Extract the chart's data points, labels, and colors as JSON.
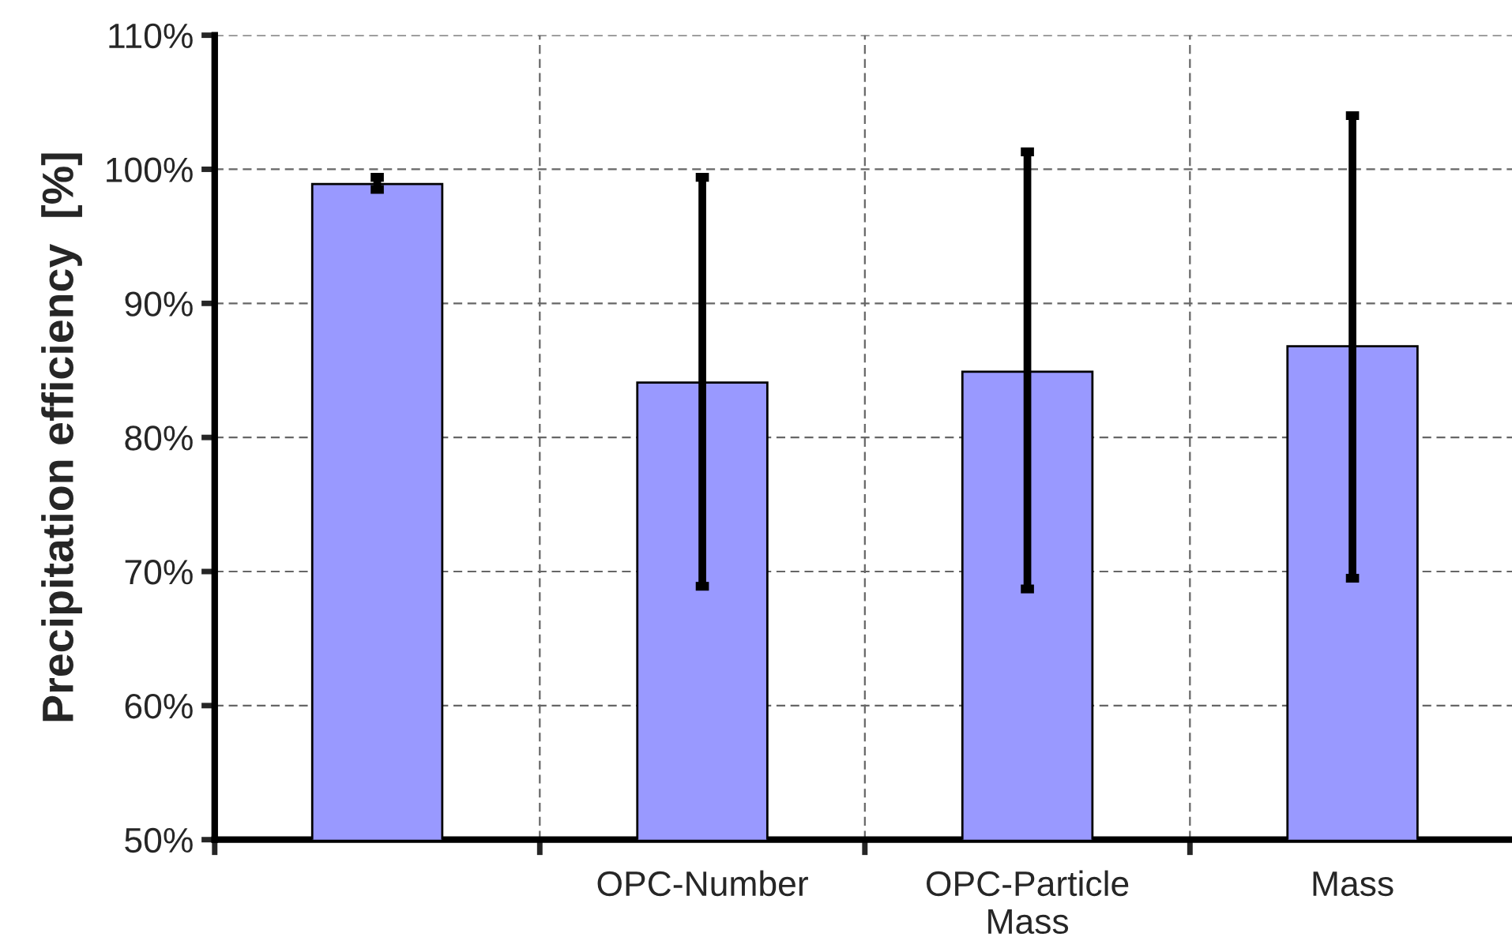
{
  "chart_data": {
    "type": "bar",
    "ylabel": "Precipitation efficiency  [%]",
    "categories": [
      null,
      "OPC-Number",
      "OPC-Particle\nMass",
      "Mass"
    ],
    "values": [
      98.9,
      84.1,
      84.9,
      86.8
    ],
    "errors": [
      [
        98.5,
        99.4
      ],
      [
        68.9,
        99.4
      ],
      [
        68.7,
        101.3
      ],
      [
        69.5,
        104
      ]
    ],
    "color": "#9999ff",
    "ylim": [
      50,
      110
    ],
    "yticks": [
      {
        "value": 50,
        "label": "50%"
      },
      {
        "value": 60,
        "label": "60%"
      },
      {
        "value": 70,
        "label": "70%"
      },
      {
        "value": 80,
        "label": "80%"
      },
      {
        "value": 90,
        "label": "90%"
      },
      {
        "value": 100,
        "label": "100%"
      },
      {
        "value": 110,
        "label": "110%"
      }
    ],
    "grid": true,
    "legend": false
  }
}
